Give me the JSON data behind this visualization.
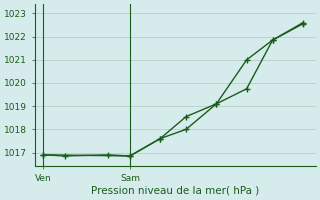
{
  "title": "Pression niveau de la mer( hPa )",
  "ylabel_values": [
    1017,
    1018,
    1019,
    1020,
    1021,
    1022,
    1023
  ],
  "ylim": [
    1016.4,
    1023.4
  ],
  "background_color": "#d6ecec",
  "plot_bg_color": "#d6ecec",
  "line_color": "#1a5c1a",
  "grid_color": "#b8cfc8",
  "vline_color": "#1a5c1a",
  "series1_x": [
    0,
    0.5,
    1.5,
    2.0,
    2.7,
    3.3,
    4.0,
    4.7,
    5.3,
    6.0
  ],
  "series1_y": [
    1016.9,
    1016.85,
    1016.9,
    1016.85,
    1017.6,
    1018.0,
    1019.1,
    1019.75,
    1021.85,
    1022.55
  ],
  "series2_x": [
    0,
    2.0,
    2.7,
    3.3,
    4.0,
    4.7,
    5.3,
    6.0
  ],
  "series2_y": [
    1016.9,
    1016.85,
    1017.6,
    1018.55,
    1019.1,
    1021.0,
    1021.85,
    1022.6
  ],
  "ven_x": 0.0,
  "sam_x": 2.0,
  "xtick_positions": [
    0.0,
    2.0
  ],
  "xtick_labels": [
    "Ven",
    "Sam"
  ],
  "vline_positions": [
    0.0,
    2.0
  ],
  "xlim": [
    -0.2,
    6.3
  ]
}
